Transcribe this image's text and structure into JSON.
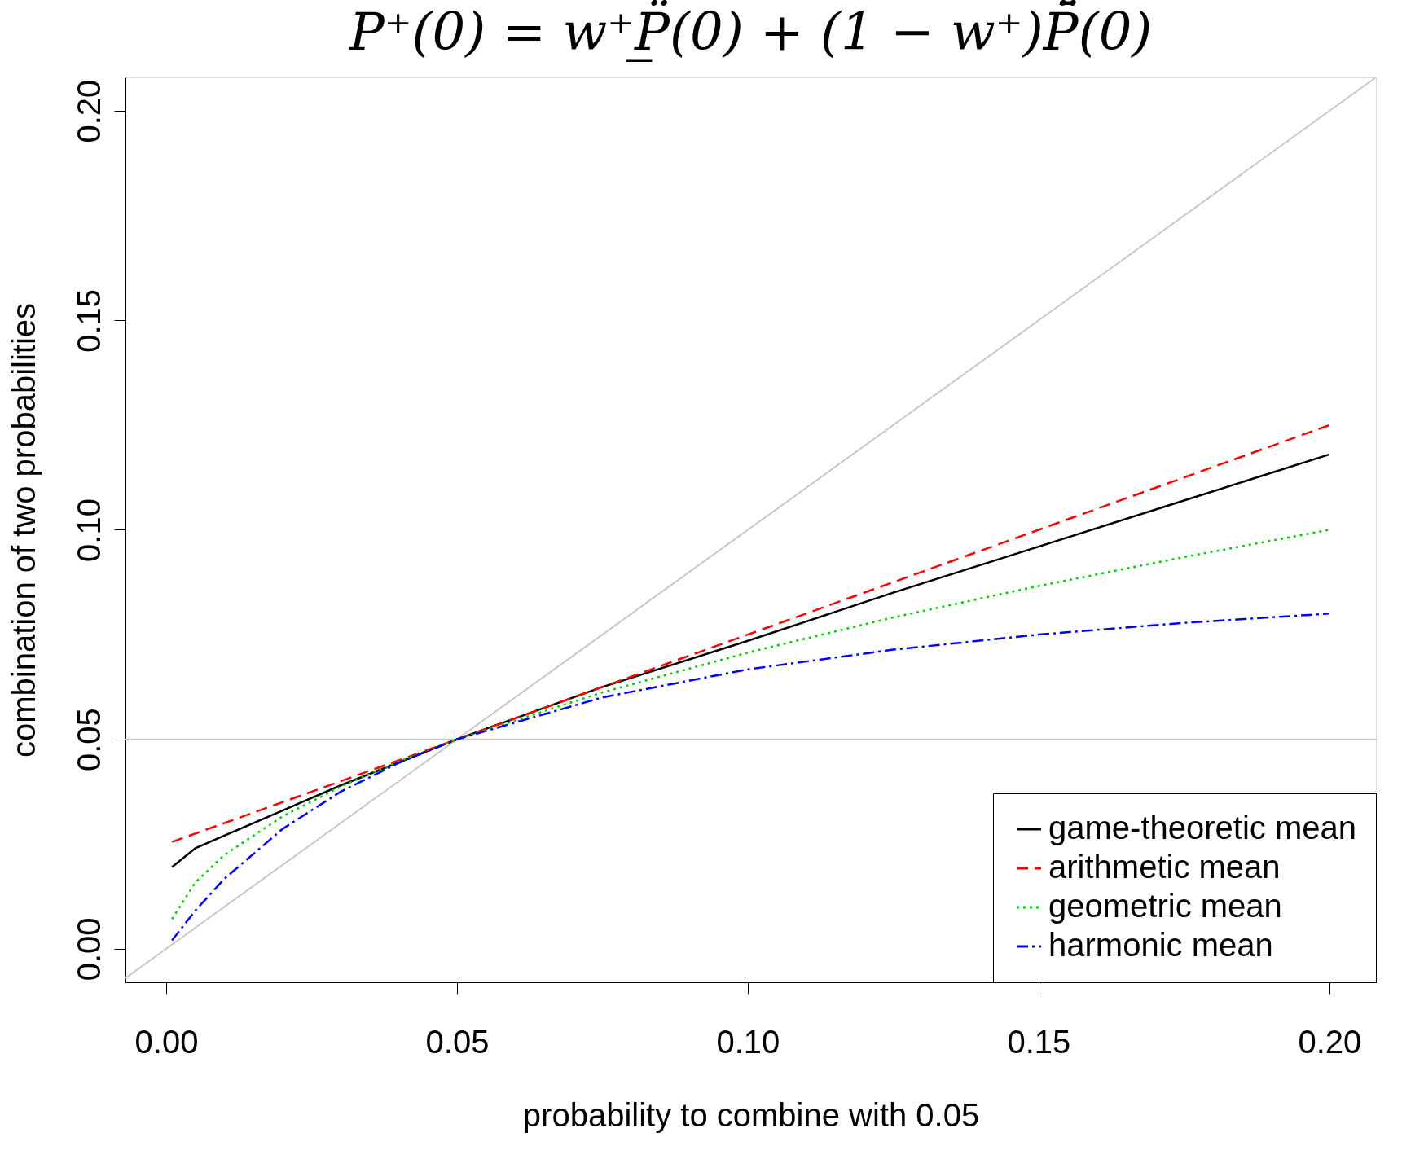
{
  "chart_data": {
    "type": "line",
    "title": "P⁺(0) = w⁺P̲̈(0) + (1 − w⁺)P̄̈(0)",
    "xlabel": "probability to combine with 0.05",
    "ylabel": "combination of two probabilities",
    "x": [
      0.001,
      0.005,
      0.01,
      0.02,
      0.03,
      0.04,
      0.05,
      0.075,
      0.1,
      0.125,
      0.15,
      0.175,
      0.2
    ],
    "series": [
      {
        "name": "game-theoretic mean",
        "color": "#000000",
        "line_style": "solid",
        "values": [
          0.0195,
          0.024,
          0.027,
          0.033,
          0.039,
          0.0445,
          0.05,
          0.0625,
          0.0735,
          0.085,
          0.096,
          0.107,
          0.118
        ]
      },
      {
        "name": "arithmetic mean",
        "color": "#ff0000",
        "line_style": "dashed",
        "values": [
          0.0255,
          0.0275,
          0.03,
          0.035,
          0.04,
          0.045,
          0.05,
          0.0625,
          0.075,
          0.0875,
          0.1,
          0.1125,
          0.125
        ]
      },
      {
        "name": "geometric mean",
        "color": "#00cc00",
        "line_style": "dotted",
        "values": [
          0.0071,
          0.0158,
          0.0224,
          0.0316,
          0.0387,
          0.0447,
          0.05,
          0.0612,
          0.0707,
          0.0791,
          0.0866,
          0.0935,
          0.1
        ]
      },
      {
        "name": "harmonic mean",
        "color": "#0000ff",
        "line_style": "dashdot",
        "values": [
          0.002,
          0.0091,
          0.0167,
          0.0286,
          0.0375,
          0.0444,
          0.05,
          0.06,
          0.0667,
          0.0714,
          0.075,
          0.0778,
          0.08
        ]
      },
      {
        "color": "#c8c8c8",
        "line_style": "solid",
        "x": [
          -0.007,
          0.208
        ],
        "values": [
          -0.007,
          0.208
        ]
      }
    ],
    "ref_lines": [
      {
        "axis": "y",
        "value": 0.05,
        "color": "#c8c8c8"
      }
    ],
    "xlim": [
      -0.007,
      0.208
    ],
    "ylim": [
      -0.008,
      0.208
    ],
    "xticks": [
      {
        "value": 0,
        "label": "0.00"
      },
      0.05,
      {
        "value": 0.1,
        "label": "0.10"
      },
      0.15,
      {
        "value": 0.2,
        "label": "0.20"
      }
    ],
    "yticks": [
      {
        "value": 0,
        "label": "0.00"
      },
      0.05,
      {
        "value": 0.1,
        "label": "0.10"
      },
      0.15,
      {
        "value": 0.2,
        "label": "0.20"
      }
    ],
    "grid": false,
    "legend": "bottom right",
    "marker": "none"
  }
}
